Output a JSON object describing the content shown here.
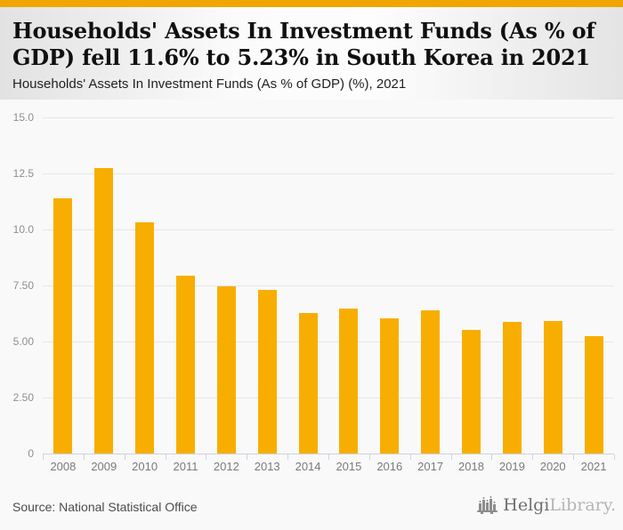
{
  "accent_color": "#f0a500",
  "bar_color": "#f8ae00",
  "header": {
    "title_line1": "Households' Assets In Investment Funds (As % of",
    "title_line2": "GDP) fell 11.6% to 5.23% in South Korea in 2021",
    "subtitle": "Households' Assets In Investment Funds (As % of GDP) (%), 2021"
  },
  "chart_data": {
    "type": "bar",
    "title": "Households' Assets In Investment Funds (As % of GDP) (%), 2021",
    "categories": [
      "2008",
      "2009",
      "2010",
      "2011",
      "2012",
      "2013",
      "2014",
      "2015",
      "2016",
      "2017",
      "2018",
      "2019",
      "2020",
      "2021"
    ],
    "values": [
      11.4,
      12.75,
      10.3,
      7.95,
      7.48,
      7.3,
      6.28,
      6.47,
      6.05,
      6.38,
      5.52,
      5.88,
      5.92,
      5.23
    ],
    "xlabel": "",
    "ylabel": "",
    "ylim": [
      0,
      15
    ],
    "yticks": [
      {
        "value": 15.0,
        "label": "15.0"
      },
      {
        "value": 12.5,
        "label": "12.5"
      },
      {
        "value": 10.0,
        "label": "10.0"
      },
      {
        "value": 7.5,
        "label": "7.50"
      },
      {
        "value": 5.0,
        "label": "5.00"
      },
      {
        "value": 2.5,
        "label": "2.50"
      },
      {
        "value": 0,
        "label": "0"
      }
    ],
    "grid": true,
    "legend": false
  },
  "footer": {
    "source": "Source: National Statistical Office",
    "logo_primary": "Helgi",
    "logo_secondary": "Library."
  }
}
